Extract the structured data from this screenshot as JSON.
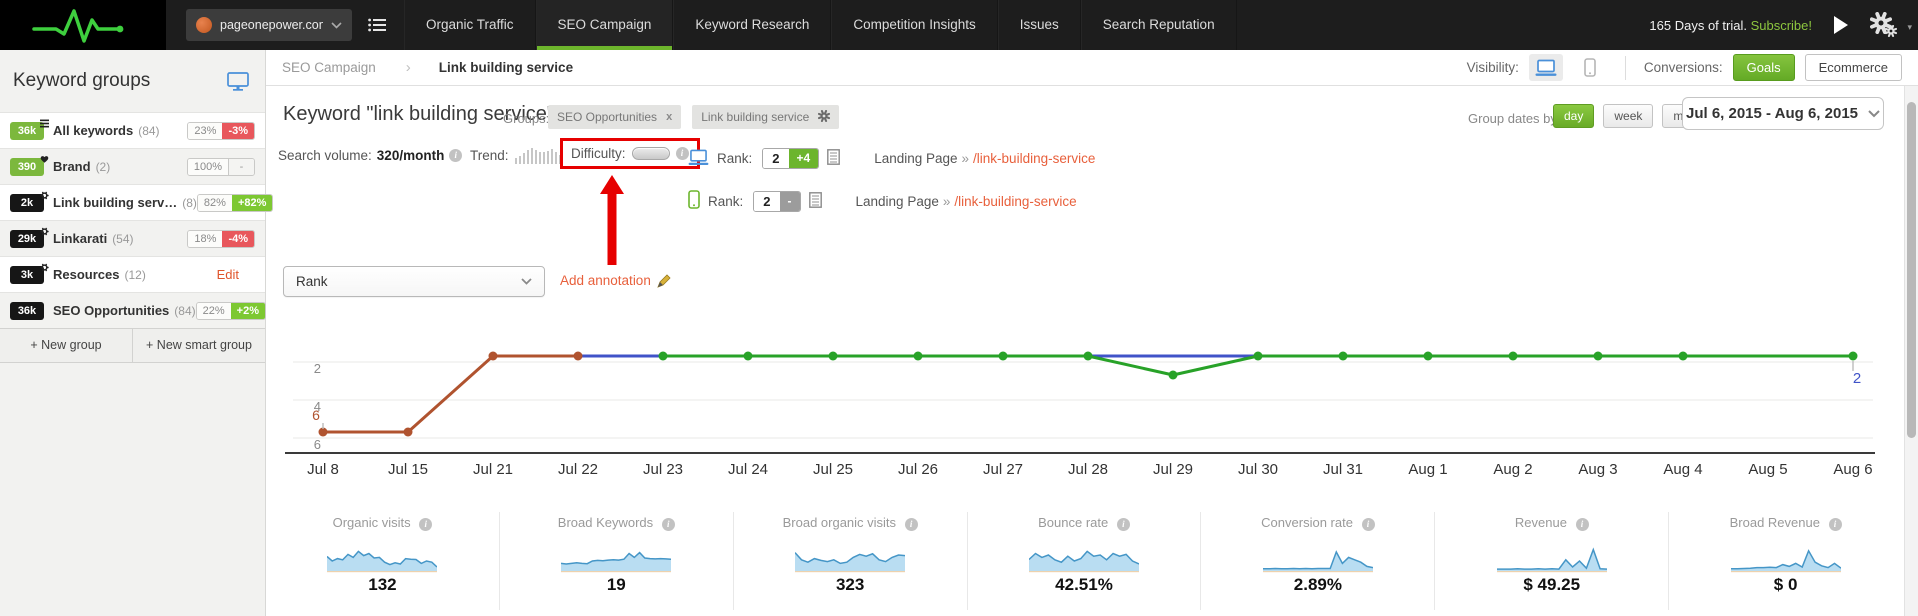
{
  "topbar": {
    "domain": "pageonepower.com",
    "tabs": [
      {
        "label": "Organic Traffic",
        "active": false
      },
      {
        "label": "SEO Campaign",
        "active": true
      },
      {
        "label": "Keyword Research",
        "active": false
      },
      {
        "label": "Competition Insights",
        "active": false
      },
      {
        "label": "Issues",
        "active": false
      },
      {
        "label": "Search Reputation",
        "active": false
      }
    ],
    "trial_text": "165 Days of trial.",
    "subscribe_label": "Subscribe!"
  },
  "subbar": {
    "breadcrumb_parent": "SEO Campaign",
    "breadcrumb_current": "Link building service",
    "visibility_label": "Visibility:",
    "conversions_label": "Conversions:",
    "goals_label": "Goals",
    "ecommerce_label": "Ecommerce"
  },
  "sidebar": {
    "title": "Keyword groups",
    "groups": [
      {
        "badge": "36k",
        "badge_color": "green",
        "icon": "list",
        "name": "All keywords",
        "count": "(84)",
        "pct": "23%",
        "delta": "-3%",
        "delta_type": "down"
      },
      {
        "badge": "390",
        "badge_color": "green",
        "icon": "heart",
        "name": "Brand",
        "count": "(2)",
        "pct": "100%",
        "delta": "-",
        "delta_type": "neutral"
      },
      {
        "badge": "2k",
        "badge_color": "black",
        "icon": "gear",
        "name": "Link building serv…",
        "count": "(8)",
        "pct": "82%",
        "delta": "+82%",
        "delta_type": "up"
      },
      {
        "badge": "29k",
        "badge_color": "black",
        "icon": "gear",
        "name": "Linkarati",
        "count": "(54)",
        "pct": "18%",
        "delta": "-4%",
        "delta_type": "down"
      },
      {
        "badge": "3k",
        "badge_color": "black",
        "icon": "gear",
        "name": "Resources",
        "count": "(12)",
        "action": "Edit"
      },
      {
        "badge": "36k",
        "badge_color": "black",
        "icon": "none",
        "name": "SEO Opportunities",
        "count": "(84)",
        "pct": "22%",
        "delta": "+2%",
        "delta_type": "up"
      }
    ],
    "new_group_label": "+ New group",
    "new_smart_group_label": "+ New smart group"
  },
  "main": {
    "title": "Keyword \"link building service\"",
    "groups_label": "Groups:",
    "group_chips": [
      {
        "label": "SEO Opportunities",
        "control": "remove"
      },
      {
        "label": "Link building service",
        "control": "settings"
      }
    ],
    "group_dates_label": "Group dates by:",
    "date_buttons": [
      {
        "label": "day",
        "active": true
      },
      {
        "label": "week",
        "active": false
      },
      {
        "label": "month",
        "active": false
      }
    ],
    "date_range": "Jul 6, 2015 - Aug 6, 2015",
    "search_volume_label": "Search volume:",
    "search_volume_value": "320/month",
    "trend_label": "Trend:",
    "trend_bars": [
      6,
      8,
      11,
      14,
      16,
      14,
      12,
      12,
      13,
      15,
      12,
      9
    ],
    "difficulty_label": "Difficulty:",
    "rank_label": "Rank:",
    "ranks": [
      {
        "device": "desktop",
        "rank": "2",
        "delta": "+4",
        "delta_type": "up",
        "landing_label": "Landing Page",
        "separator": "»",
        "landing_url": "/link-building-service"
      },
      {
        "device": "mobile",
        "rank": "2",
        "delta": "-",
        "delta_type": "neutral",
        "landing_label": "Landing Page",
        "separator": "»",
        "landing_url": "/link-building-service"
      }
    ],
    "metric_select_value": "Rank",
    "add_annotation_label": "Add annotation"
  },
  "chart_data": {
    "type": "line",
    "title": "Rank over time",
    "inverted_axis": true,
    "y_ticks": [
      2,
      4,
      6
    ],
    "x_labels": [
      "Jul 8",
      "Jul 15",
      "Jul 21",
      "Jul 22",
      "Jul 23",
      "Jul 24",
      "Jul 25",
      "Jul 26",
      "Jul 27",
      "Jul 28",
      "Jul 29",
      "Jul 30",
      "Jul 31",
      "Aug 1",
      "Aug 2",
      "Aug 3",
      "Aug 4",
      "Aug 5",
      "Aug 6"
    ],
    "series": [
      {
        "name": "rank-history",
        "color": "#b0532f",
        "markers": "all",
        "points": [
          {
            "x": "Jul 8",
            "y": 6
          },
          {
            "x": "Jul 15",
            "y": 6
          },
          {
            "x": "Jul 21",
            "y": 2
          },
          {
            "x": "Jul 22",
            "y": 2
          }
        ]
      },
      {
        "name": "desktop-rank",
        "color": "#4053c8",
        "markers": [
          "Jul 29",
          "Aug 5"
        ],
        "points": [
          {
            "x": "Jul 22",
            "y": 2
          },
          {
            "x": "Aug 6",
            "y": 2
          }
        ]
      },
      {
        "name": "mobile-rank",
        "color": "#28a228",
        "markers": "all",
        "marker_skip": [
          "Aug 5"
        ],
        "points": [
          {
            "x": "Jul 23",
            "y": 2
          },
          {
            "x": "Jul 24",
            "y": 2
          },
          {
            "x": "Jul 25",
            "y": 2
          },
          {
            "x": "Jul 26",
            "y": 2
          },
          {
            "x": "Jul 27",
            "y": 2
          },
          {
            "x": "Jul 28",
            "y": 2
          },
          {
            "x": "Jul 29",
            "y": 3
          },
          {
            "x": "Jul 30",
            "y": 2
          },
          {
            "x": "Jul 31",
            "y": 2
          },
          {
            "x": "Aug 1",
            "y": 2
          },
          {
            "x": "Aug 2",
            "y": 2
          },
          {
            "x": "Aug 3",
            "y": 2
          },
          {
            "x": "Aug 4",
            "y": 2
          },
          {
            "x": "Aug 5",
            "y": 2
          },
          {
            "x": "Aug 6",
            "y": 2
          }
        ]
      }
    ],
    "start_value_label": {
      "text": "6",
      "color": "#b0532f"
    },
    "end_value_label": {
      "text": "2",
      "color": "#4053c8"
    }
  },
  "metrics": [
    {
      "label": "Organic visits",
      "value": "132",
      "spark": [
        45,
        30,
        38,
        34,
        52,
        42,
        62,
        48,
        55,
        40,
        42,
        26,
        18,
        24,
        20,
        38,
        36,
        35,
        22,
        30,
        26,
        10
      ]
    },
    {
      "label": "Broad Keywords",
      "value": "19",
      "spark": [
        22,
        20,
        22,
        24,
        22,
        21,
        30,
        32,
        31,
        33,
        34,
        33,
        36,
        55,
        42,
        58,
        40,
        38,
        37,
        38,
        37,
        36
      ]
    },
    {
      "label": "Broad organic visits",
      "value": "323",
      "spark": [
        58,
        34,
        26,
        38,
        32,
        28,
        34,
        22,
        26,
        42,
        52,
        46,
        54,
        34,
        28,
        42,
        50,
        48
      ]
    },
    {
      "label": "Bounce rate",
      "value": "42.51%",
      "spark": [
        35,
        55,
        42,
        50,
        34,
        26,
        46,
        30,
        38,
        62,
        46,
        50,
        34,
        55,
        46,
        52,
        30,
        20
      ]
    },
    {
      "label": "Conversion rate",
      "value": "2.89%",
      "spark": [
        4,
        4,
        5,
        4,
        4,
        5,
        4,
        5,
        4,
        5,
        5,
        5,
        60,
        22,
        42,
        34,
        26,
        12,
        8
      ]
    },
    {
      "label": "Revenue",
      "value": "$ 49.25",
      "spark": [
        3,
        3,
        3,
        4,
        3,
        3,
        4,
        3,
        4,
        3,
        34,
        10,
        30,
        6,
        68,
        4,
        3
      ]
    },
    {
      "label": "Broad Revenue",
      "value": "$ 0",
      "spark": [
        4,
        4,
        5,
        6,
        8,
        8,
        9,
        8,
        18,
        12,
        22,
        10,
        64,
        26,
        14,
        8,
        22,
        6
      ]
    }
  ],
  "colors": {
    "accent_green": "#6db52c",
    "badge_green": "#7dc832",
    "badge_red": "#e8575c",
    "link_orange": "#e8603c",
    "annotation_red": "#e60000",
    "spark_fill": "#b9ddf2",
    "spark_stroke": "#4596c7"
  }
}
